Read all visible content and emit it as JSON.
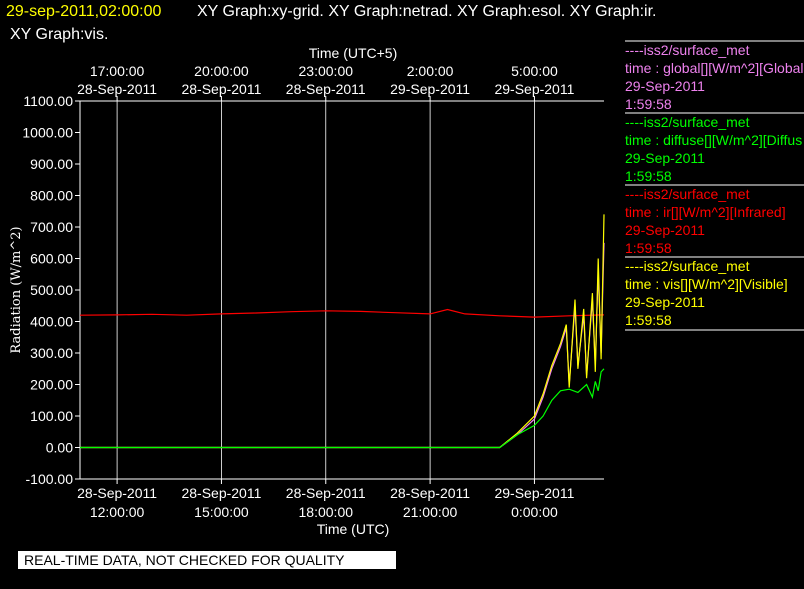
{
  "header": {
    "timestamp": "29-sep-2011,02:00:00",
    "graphs_line1": "XY Graph:xy-grid.  XY Graph:netrad.  XY Graph:esol.  XY Graph:ir.",
    "graphs_line2": "XY Graph:vis."
  },
  "banner": "REAL-TIME DATA, NOT CHECKED FOR QUALITY",
  "colors": {
    "timestamp": "#ffff00",
    "global": "#ee82ee",
    "diffuse": "#00ff00",
    "ir": "#ff0000",
    "vis": "#ffff00"
  },
  "legend": [
    {
      "source": "----iss2/surface_met",
      "field": "time : global[][W/m^2][Global",
      "date": "29-Sep-2011",
      "time": "1:59:58",
      "color": "#ee82ee"
    },
    {
      "source": "----iss2/surface_met",
      "field": "time : diffuse[][W/m^2][Diffus",
      "date": "29-Sep-2011",
      "time": "1:59:58",
      "color": "#00ff00"
    },
    {
      "source": "----iss2/surface_met",
      "field": "time : ir[][W/m^2][Infrared]",
      "date": "29-Sep-2011",
      "time": "1:59:58",
      "color": "#ff0000"
    },
    {
      "source": "----iss2/surface_met",
      "field": "time : vis[][W/m^2][Visible]",
      "date": "29-Sep-2011",
      "time": "1:59:58",
      "color": "#ffff00"
    }
  ],
  "chart_data": {
    "type": "line",
    "title": "",
    "xlabel": "Time (UTC)",
    "x2label": "Time (UTC+5)",
    "ylabel": "Radiation (W/m^2)",
    "xlim": [
      "2011-09-28 10:56",
      "2011-09-29 02:00"
    ],
    "ylim": [
      -100,
      1100
    ],
    "grid": true,
    "legend_position": "right",
    "yticks": [
      "-100.00",
      "0.00",
      "100.00",
      "200.00",
      "300.00",
      "400.00",
      "500.00",
      "600.00",
      "700.00",
      "800.00",
      "900.00",
      "1000.00",
      "1100.00"
    ],
    "xticks": [
      {
        "date": "28-Sep-2011",
        "time": "12:00:00",
        "t": "2011-09-28 12:00"
      },
      {
        "date": "28-Sep-2011",
        "time": "15:00:00",
        "t": "2011-09-28 15:00"
      },
      {
        "date": "28-Sep-2011",
        "time": "18:00:00",
        "t": "2011-09-28 18:00"
      },
      {
        "date": "28-Sep-2011",
        "time": "21:00:00",
        "t": "2011-09-28 21:00"
      },
      {
        "date": "29-Sep-2011",
        "time": "0:00:00",
        "t": "2011-09-29 00:00"
      }
    ],
    "x2ticks": [
      {
        "time": "17:00:00",
        "date": "28-Sep-2011",
        "t": "2011-09-28 12:00"
      },
      {
        "time": "20:00:00",
        "date": "28-Sep-2011",
        "t": "2011-09-28 15:00"
      },
      {
        "time": "23:00:00",
        "date": "28-Sep-2011",
        "t": "2011-09-28 18:00"
      },
      {
        "time": "2:00:00",
        "date": "29-Sep-2011",
        "t": "2011-09-28 21:00"
      },
      {
        "time": "5:00:00",
        "date": "29-Sep-2011",
        "t": "2011-09-29 00:00"
      }
    ],
    "series": [
      {
        "key": "ir",
        "color": "#ff0000",
        "x": [
          "2011-09-28 10:56",
          "2011-09-28 12:00",
          "2011-09-28 13:00",
          "2011-09-28 14:00",
          "2011-09-28 15:00",
          "2011-09-28 16:00",
          "2011-09-28 17:00",
          "2011-09-28 18:00",
          "2011-09-28 19:00",
          "2011-09-28 20:00",
          "2011-09-28 21:00",
          "2011-09-28 21:30",
          "2011-09-28 22:00",
          "2011-09-28 23:00",
          "2011-09-29 00:00",
          "2011-09-29 01:00",
          "2011-09-29 02:00"
        ],
        "y": [
          420,
          421,
          423,
          420,
          424,
          427,
          431,
          434,
          432,
          428,
          424,
          438,
          424,
          418,
          414,
          418,
          421
        ]
      },
      {
        "key": "global",
        "color": "#ee82ee",
        "x": [
          "2011-09-28 10:56",
          "2011-09-28 23:00",
          "2011-09-28 23:30",
          "2011-09-29 00:00",
          "2011-09-29 00:15",
          "2011-09-29 00:30",
          "2011-09-29 00:45",
          "2011-09-29 00:55",
          "2011-09-29 01:00",
          "2011-09-29 01:10",
          "2011-09-29 01:15",
          "2011-09-29 01:25",
          "2011-09-29 01:30",
          "2011-09-29 01:40",
          "2011-09-29 01:45",
          "2011-09-29 01:50",
          "2011-09-29 01:55",
          "2011-09-29 02:00"
        ],
        "y": [
          0,
          0,
          40,
          90,
          160,
          250,
          320,
          380,
          200,
          450,
          260,
          420,
          230,
          470,
          260,
          560,
          300,
          650
        ]
      },
      {
        "key": "vis",
        "color": "#ffff00",
        "x": [
          "2011-09-28 10:56",
          "2011-09-28 23:00",
          "2011-09-28 23:30",
          "2011-09-29 00:00",
          "2011-09-29 00:15",
          "2011-09-29 00:30",
          "2011-09-29 00:45",
          "2011-09-29 00:55",
          "2011-09-29 01:00",
          "2011-09-29 01:10",
          "2011-09-29 01:15",
          "2011-09-29 01:25",
          "2011-09-29 01:30",
          "2011-09-29 01:40",
          "2011-09-29 01:45",
          "2011-09-29 01:50",
          "2011-09-29 01:55",
          "2011-09-29 02:00"
        ],
        "y": [
          0,
          0,
          45,
          100,
          170,
          260,
          330,
          390,
          190,
          470,
          250,
          440,
          220,
          490,
          240,
          600,
          280,
          740
        ]
      },
      {
        "key": "diffuse",
        "color": "#00ff00",
        "x": [
          "2011-09-28 10:56",
          "2011-09-28 23:00",
          "2011-09-28 23:30",
          "2011-09-29 00:00",
          "2011-09-29 00:15",
          "2011-09-29 00:30",
          "2011-09-29 00:45",
          "2011-09-29 01:00",
          "2011-09-29 01:15",
          "2011-09-29 01:30",
          "2011-09-29 01:40",
          "2011-09-29 01:45",
          "2011-09-29 01:50",
          "2011-09-29 01:55",
          "2011-09-29 02:00"
        ],
        "y": [
          0,
          0,
          40,
          70,
          100,
          150,
          180,
          185,
          175,
          200,
          160,
          210,
          180,
          240,
          250
        ]
      }
    ]
  }
}
